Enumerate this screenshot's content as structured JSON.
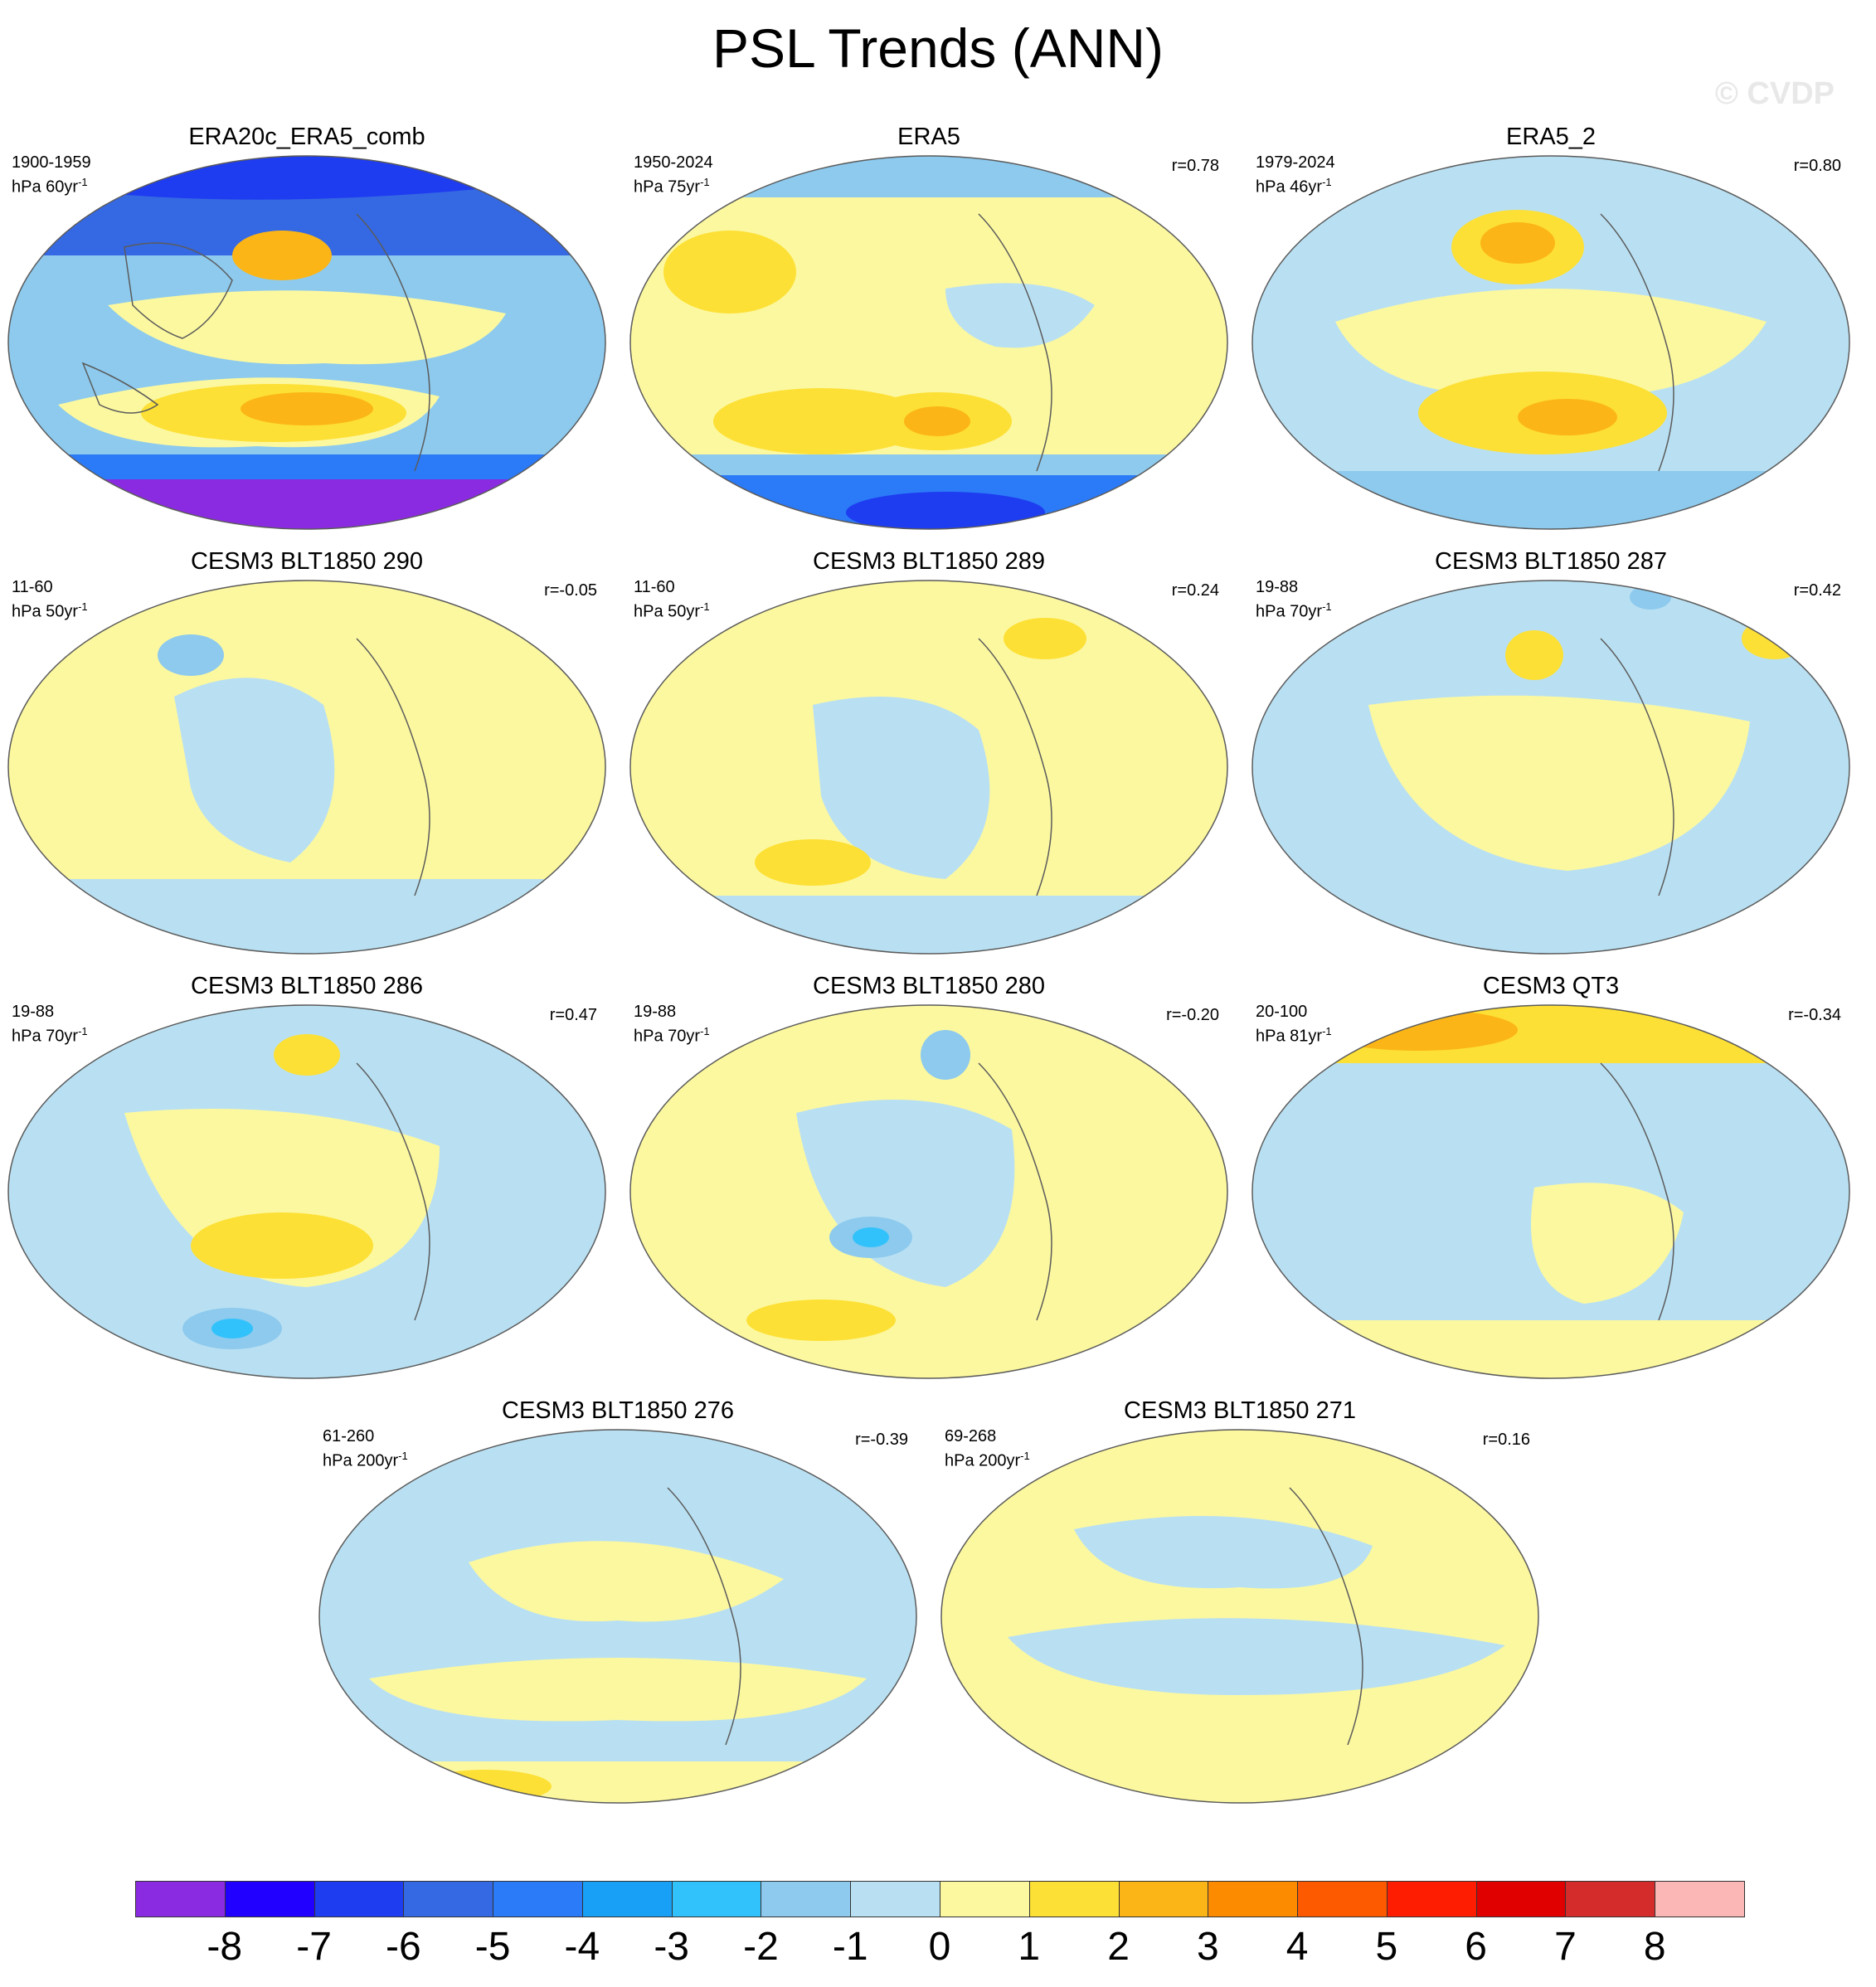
{
  "title": "PSL Trends (ANN)",
  "watermark": "© CVDP",
  "colors": {
    "ocean_land_coast": "#5b5b5b",
    "scale": [
      "#8a2be2",
      "#2200ff",
      "#1e3cf0",
      "#3568e3",
      "#2b7af7",
      "#17a0f5",
      "#32c2fb",
      "#8dcaee",
      "#b9e0f2",
      "#fcf8a0",
      "#fde035",
      "#fcb516",
      "#fd8b00",
      "#fd5a00",
      "#fe1d00",
      "#e00000",
      "#d42b2b",
      "#fbb6b6"
    ]
  },
  "colorbar": {
    "labels": [
      "-8",
      "-7",
      "-6",
      "-5",
      "-4",
      "-3",
      "-2",
      "-1",
      "0",
      "1",
      "2",
      "3",
      "4",
      "5",
      "6",
      "7",
      "8"
    ]
  },
  "panels": [
    {
      "title": "ERA20c_ERA5_comb",
      "period": "1900-1959",
      "units": "hPa 60yr",
      "units_sup": "-1",
      "corr": ""
    },
    {
      "title": "ERA5",
      "period": "1950-2024",
      "units": "hPa 75yr",
      "units_sup": "-1",
      "corr": "r=0.78"
    },
    {
      "title": "ERA5_2",
      "period": "1979-2024",
      "units": "hPa 46yr",
      "units_sup": "-1",
      "corr": "r=0.80"
    },
    {
      "title": "CESM3 BLT1850 290",
      "period": "11-60",
      "units": "hPa 50yr",
      "units_sup": "-1",
      "corr": "r=-0.05"
    },
    {
      "title": "CESM3 BLT1850 289",
      "period": "11-60",
      "units": "hPa 50yr",
      "units_sup": "-1",
      "corr": "r=0.24"
    },
    {
      "title": "CESM3 BLT1850 287",
      "period": "19-88",
      "units": "hPa 70yr",
      "units_sup": "-1",
      "corr": "r=0.42"
    },
    {
      "title": "CESM3 BLT1850 286",
      "period": "19-88",
      "units": "hPa 70yr",
      "units_sup": "-1",
      "corr": "r=0.47"
    },
    {
      "title": "CESM3 BLT1850 280",
      "period": "19-88",
      "units": "hPa 70yr",
      "units_sup": "-1",
      "corr": "r=-0.20"
    },
    {
      "title": "CESM3 QT3",
      "period": "20-100",
      "units": "hPa 81yr",
      "units_sup": "-1",
      "corr": "r=-0.34"
    },
    {
      "title": "CESM3 BLT1850 276",
      "period": "61-260",
      "units": "hPa 200yr",
      "units_sup": "-1",
      "corr": "r=-0.39"
    },
    {
      "title": "CESM3 BLT1850 271",
      "period": "69-268",
      "units": "hPa 200yr",
      "units_sup": "-1",
      "corr": "r=0.16"
    }
  ]
}
